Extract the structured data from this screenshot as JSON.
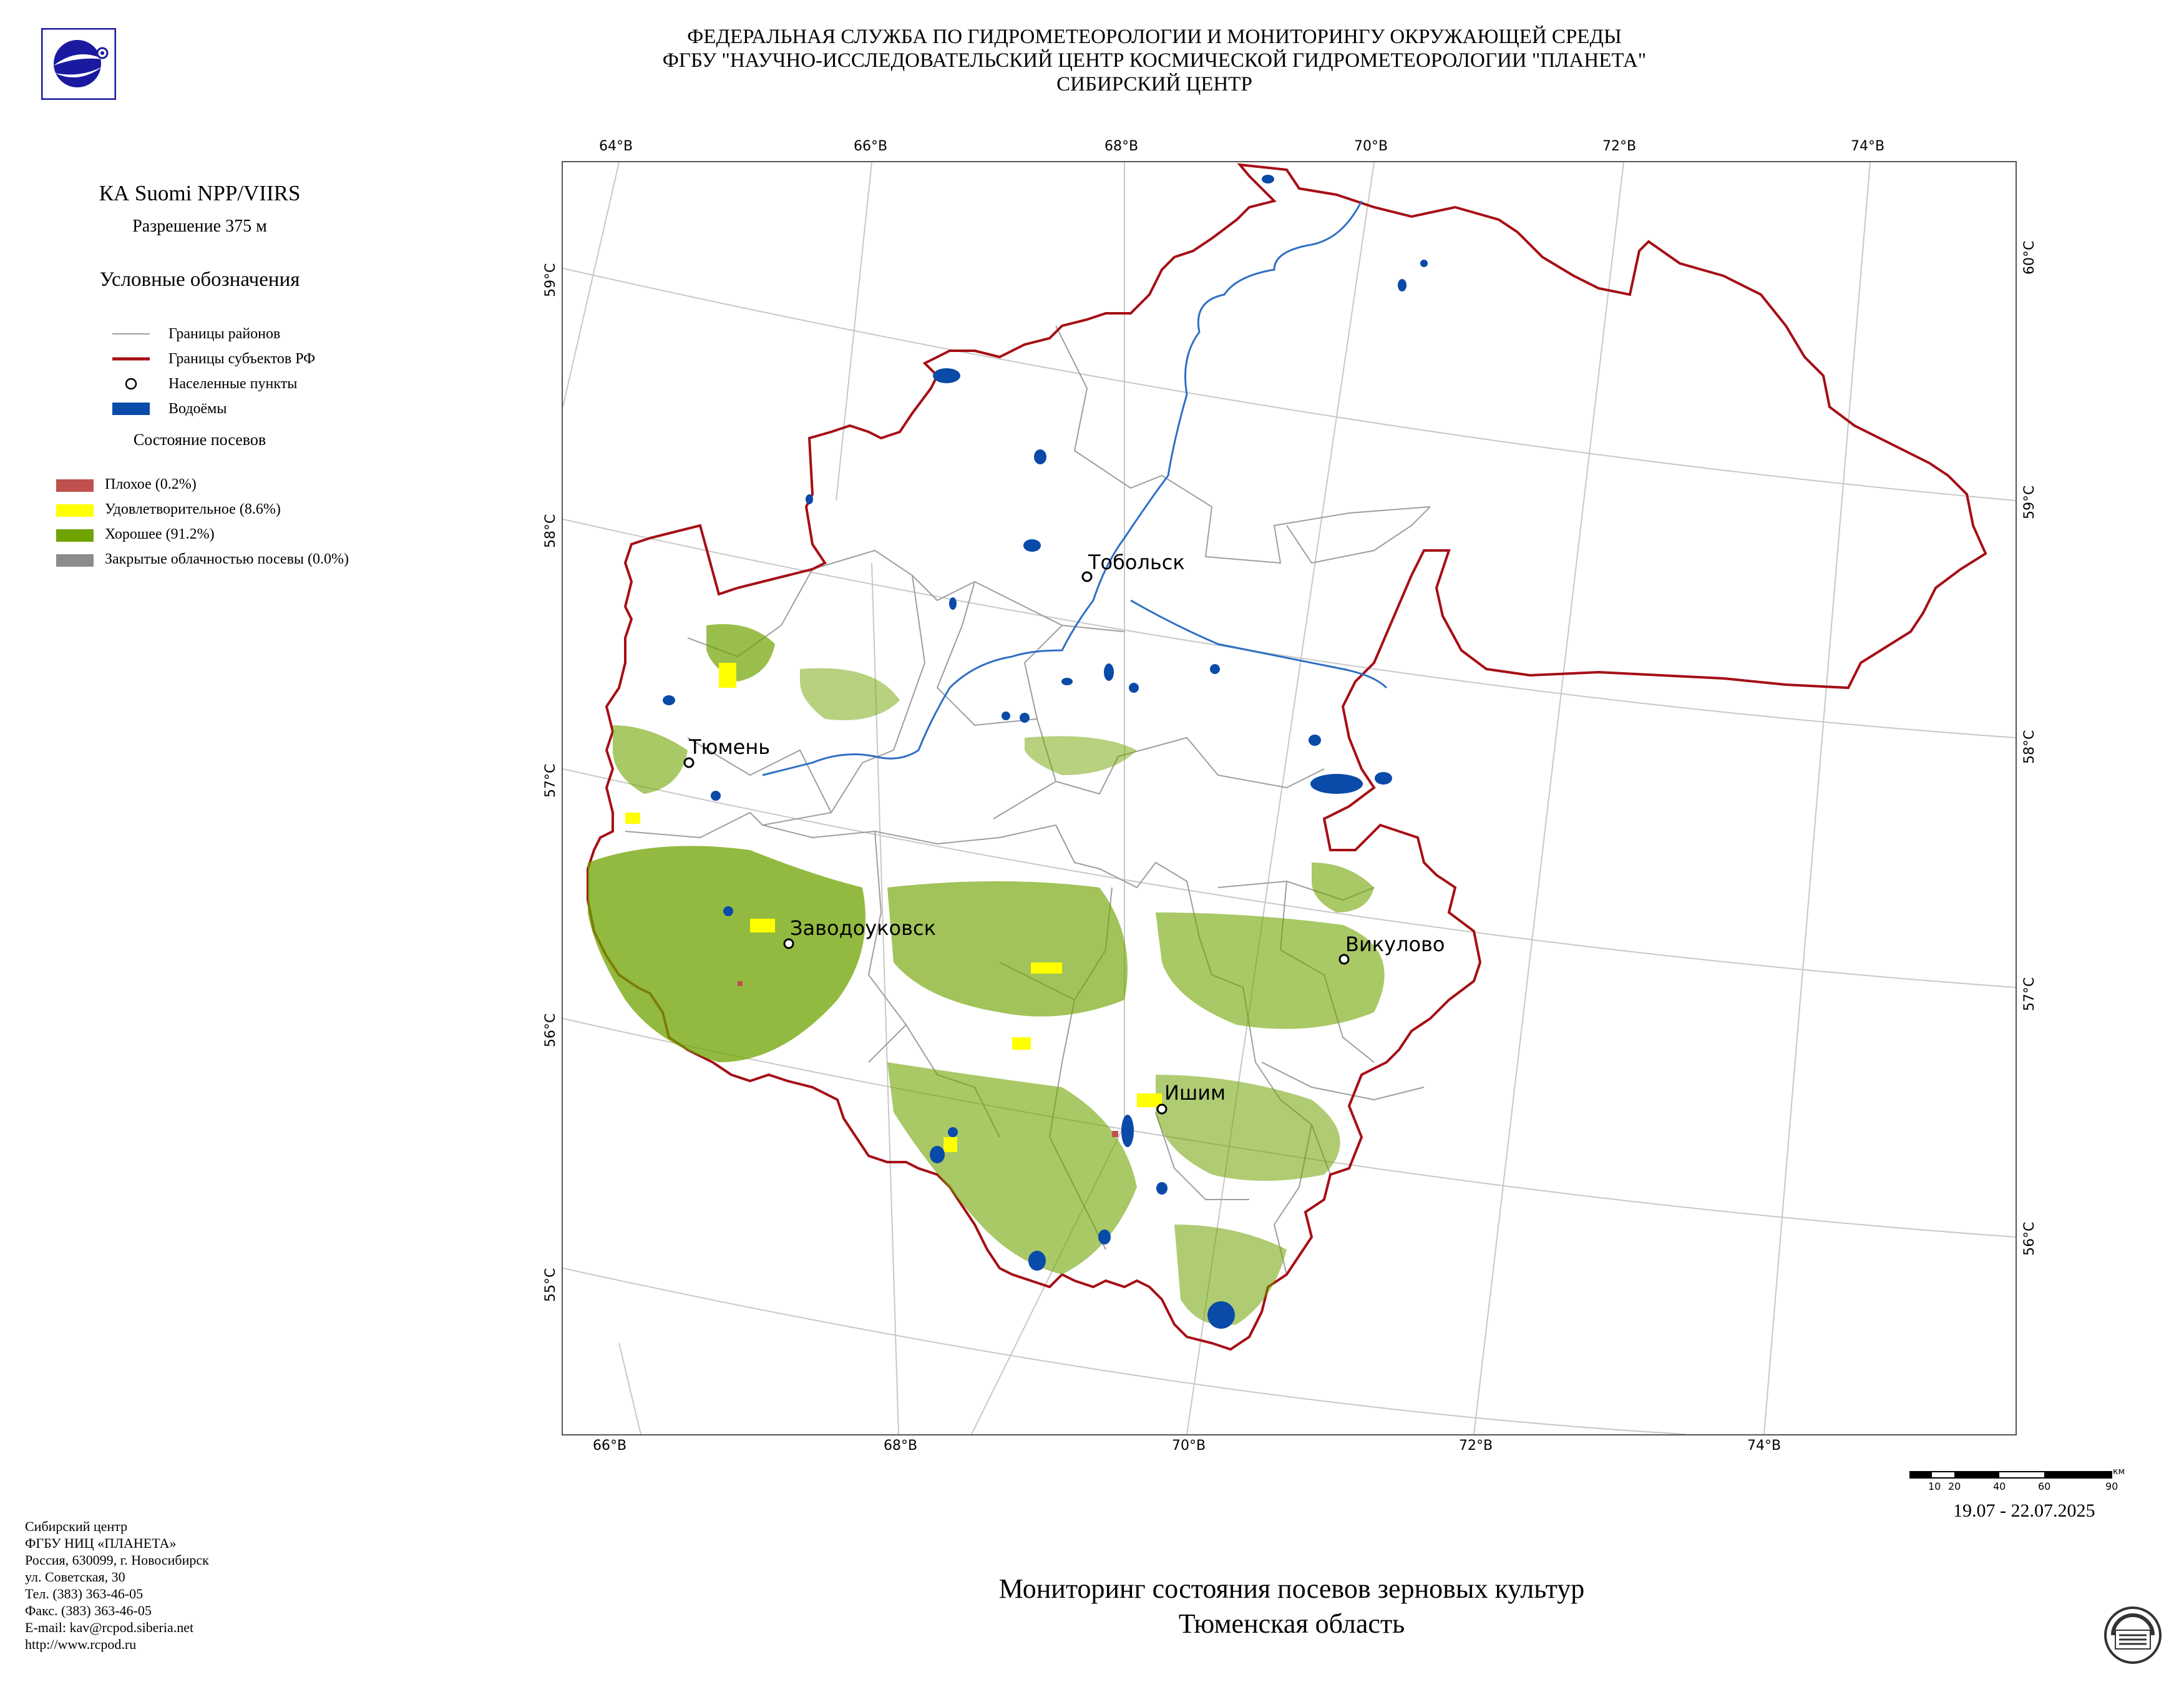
{
  "header": {
    "line1": "ФЕДЕРАЛЬНАЯ СЛУЖБА ПО ГИДРОМЕТЕОРОЛОГИИ И МОНИТОРИНГУ ОКРУЖАЮЩЕЙ СРЕДЫ",
    "line2": "ФГБУ \"НАУЧНО-ИССЛЕДОВАТЕЛЬСКИЙ ЦЕНТР КОСМИЧЕСКОЙ ГИДРОМЕТЕОРОЛОГИИ \"ПЛАНЕТА\"",
    "line3": "СИБИРСКИЙ ЦЕНТР"
  },
  "legend": {
    "satellite": "КА Suomi NPP/VIIRS",
    "resolution": "Разрешение 375 м",
    "title": "Условные обозначения",
    "items": [
      {
        "label": "Границы районов",
        "symbol": "district-line",
        "color": "#9e9e9e"
      },
      {
        "label": "Границы субъектов РФ",
        "symbol": "region-line",
        "color": "#a50f15"
      },
      {
        "label": "Населенные пункты",
        "symbol": "settlement-circle",
        "color": "#000000"
      },
      {
        "label": "Водоёмы",
        "symbol": "water-rect",
        "color": "#0a4aa8"
      }
    ],
    "crops_title": "Состояние посевов",
    "crops": [
      {
        "label": "Плохое (0.2%)",
        "color": "#c0504d"
      },
      {
        "label": "Удовлетворительное (8.6%)",
        "color": "#ffff00"
      },
      {
        "label": "Хорошее (91.2%)",
        "color": "#6fa300"
      },
      {
        "label": "Закрытые облачностью посевы (0.0%)",
        "color": "#8c8c8c"
      }
    ]
  },
  "map": {
    "top_ticks": [
      "64°В",
      "66°В",
      "68°В",
      "70°В",
      "72°В",
      "74°В"
    ],
    "bottom_ticks": [
      "66°В",
      "68°В",
      "70°В",
      "72°В",
      "74°В"
    ],
    "left_ticks": [
      "59°С",
      "58°С",
      "57°С",
      "56°С",
      "55°С"
    ],
    "right_ticks": [
      "60°С",
      "59°С",
      "58°С",
      "57°С",
      "56°С"
    ],
    "cities": [
      "Тобольск",
      "Тюмень",
      "Заводоуковск",
      "Викулово",
      "Ишим"
    ],
    "colors": {
      "region_border": "#a50f15",
      "district_border": "#9e9e9e",
      "water": "#0a4aa8",
      "river": "#2f6fc4",
      "graticule": "#c8c8c8"
    }
  },
  "scale": {
    "labels": [
      "10",
      "20",
      "40",
      "60",
      "90"
    ],
    "unit": "км"
  },
  "date_range": "19.07 - 22.07.2025",
  "title": {
    "line1": "Мониторинг состояния посевов зерновых культур",
    "line2": "Тюменская область"
  },
  "footer": {
    "lines": [
      "Сибирский центр",
      "ФГБУ НИЦ «ПЛАНЕТА»",
      "Россия, 630099, г. Новосибирск",
      "ул. Советская, 30",
      "Тел. (383) 363-46-05",
      "Факс. (383) 363-46-05",
      "E-mail: kav@rcpod.siberia.net",
      "http://www.rcpod.ru"
    ]
  }
}
